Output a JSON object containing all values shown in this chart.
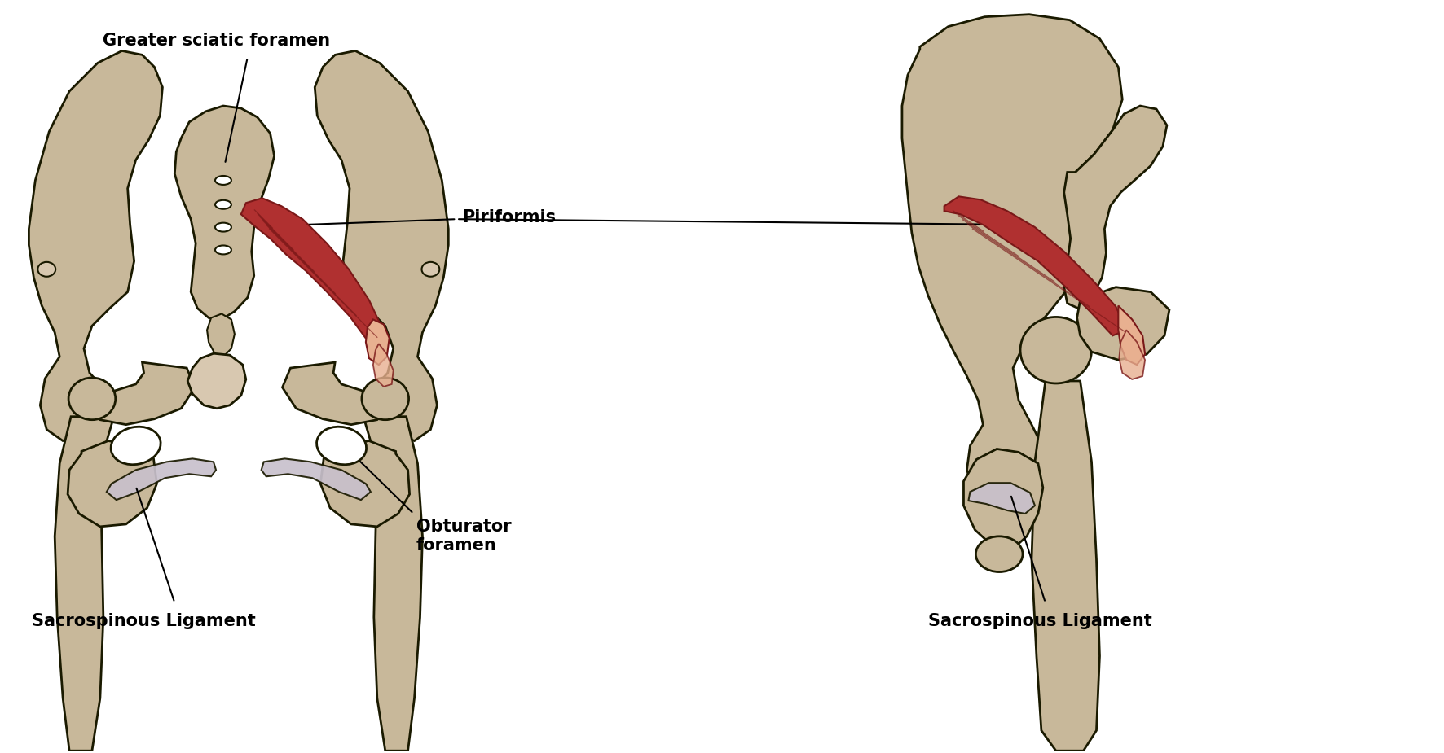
{
  "background_color": "#ffffff",
  "bone_fill": "#c8b89a",
  "bone_edge": "#1a1a00",
  "bone_light": "#d8c8b0",
  "muscle_fill": "#b03030",
  "muscle_dark": "#7a1818",
  "tendon_fill": "#e8b090",
  "ligament_fill": "#c8c0cc",
  "labels": {
    "greater_sciatic_foramen": "Greater sciatic foramen",
    "piriformis": "Piriformis",
    "obturator_foramen": "Obturator\nforamen",
    "sacrospinous_left": "Sacrospinous Ligament",
    "sacrospinous_right": "Sacrospinous Ligament"
  },
  "label_fontsize": 15,
  "label_color": "#000000",
  "line_color": "#000000",
  "figsize": [
    17.72,
    9.25
  ],
  "dpi": 100
}
